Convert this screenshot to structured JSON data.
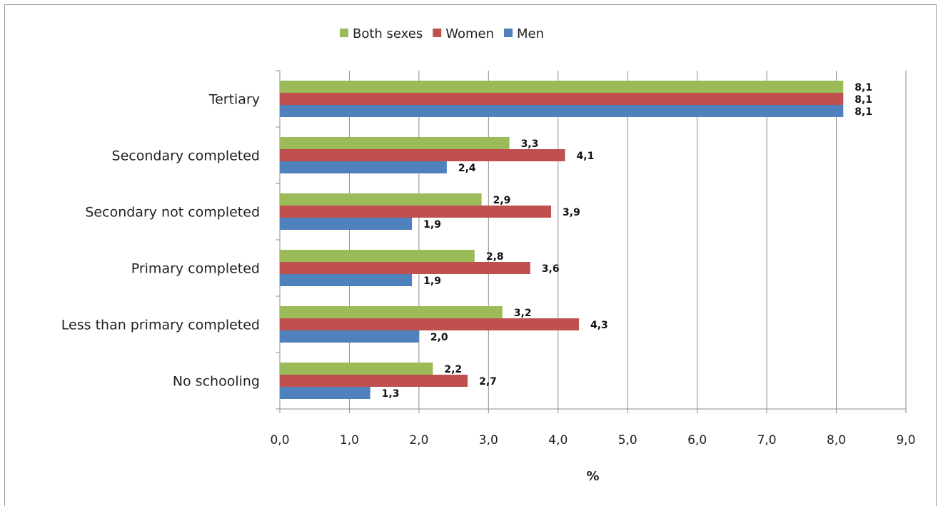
{
  "chart_data": {
    "type": "bar",
    "orientation": "horizontal",
    "categories": [
      "Tertiary",
      "Secondary completed",
      "Secondary not completed",
      "Primary completed",
      "Less than primary completed",
      "No schooling"
    ],
    "series": [
      {
        "name": "Both sexes",
        "color": "#9bbb59",
        "values": [
          8.1,
          3.3,
          2.9,
          2.8,
          3.2,
          2.2
        ],
        "labels": [
          "8,1",
          "3,3",
          "2,9",
          "2,8",
          "3,2",
          "2,2"
        ]
      },
      {
        "name": "Women",
        "color": "#c0504d",
        "values": [
          8.1,
          4.1,
          3.9,
          3.6,
          4.3,
          2.7
        ],
        "labels": [
          "8,1",
          "4,1",
          "3,9",
          "3,6",
          "4,3",
          "2,7"
        ]
      },
      {
        "name": "Men",
        "color": "#4f81bd",
        "values": [
          8.1,
          2.4,
          1.9,
          1.9,
          2.0,
          1.3
        ],
        "labels": [
          "8,1",
          "2,4",
          "1,9",
          "1,9",
          "2,0",
          "1,3"
        ]
      }
    ],
    "xlim": [
      0,
      9
    ],
    "xticks": [
      "0,0",
      "1,0",
      "2,0",
      "3,0",
      "4,0",
      "5,0",
      "6,0",
      "7,0",
      "8,0",
      "9,0"
    ],
    "xlabel": "%",
    "ylabel": "",
    "title": "",
    "grid": true,
    "legend_position": "top"
  }
}
